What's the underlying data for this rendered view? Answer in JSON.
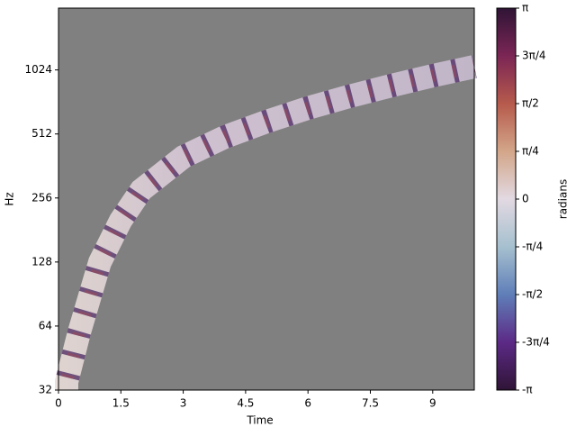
{
  "chart_data": {
    "type": "heatmap",
    "xlabel": "Time",
    "ylabel": "Hz",
    "xlim": [
      0,
      10
    ],
    "xticks": [
      0,
      1.5,
      3,
      4.5,
      6,
      7.5,
      9
    ],
    "ylim": [
      32,
      2000
    ],
    "yscale": "log",
    "yticks": [
      32,
      64,
      128,
      256,
      512,
      1024
    ],
    "background": "#808080",
    "colorbar": {
      "label": "radians",
      "lim": [
        -3.14159,
        3.14159
      ],
      "ticks": [
        {
          "value": -3.14159,
          "label": "-π"
        },
        {
          "value": -2.35619,
          "label": "-3π/4"
        },
        {
          "value": -1.5708,
          "label": "-π/2"
        },
        {
          "value": -0.7854,
          "label": "-π/4"
        },
        0,
        {
          "value": 0.7854,
          "label": "π/4"
        },
        {
          "value": 1.5708,
          "label": "π/2"
        },
        {
          "value": 2.35619,
          "label": "3π/4"
        },
        {
          "value": 3.14159,
          "label": "π"
        }
      ],
      "colors": [
        "#2f1436",
        "#5c2a86",
        "#5f7eb8",
        "#a6c0cf",
        "#e2d9e2",
        "#d3a689",
        "#b65a4c",
        "#7b2655",
        "#2f1436"
      ]
    }
  }
}
